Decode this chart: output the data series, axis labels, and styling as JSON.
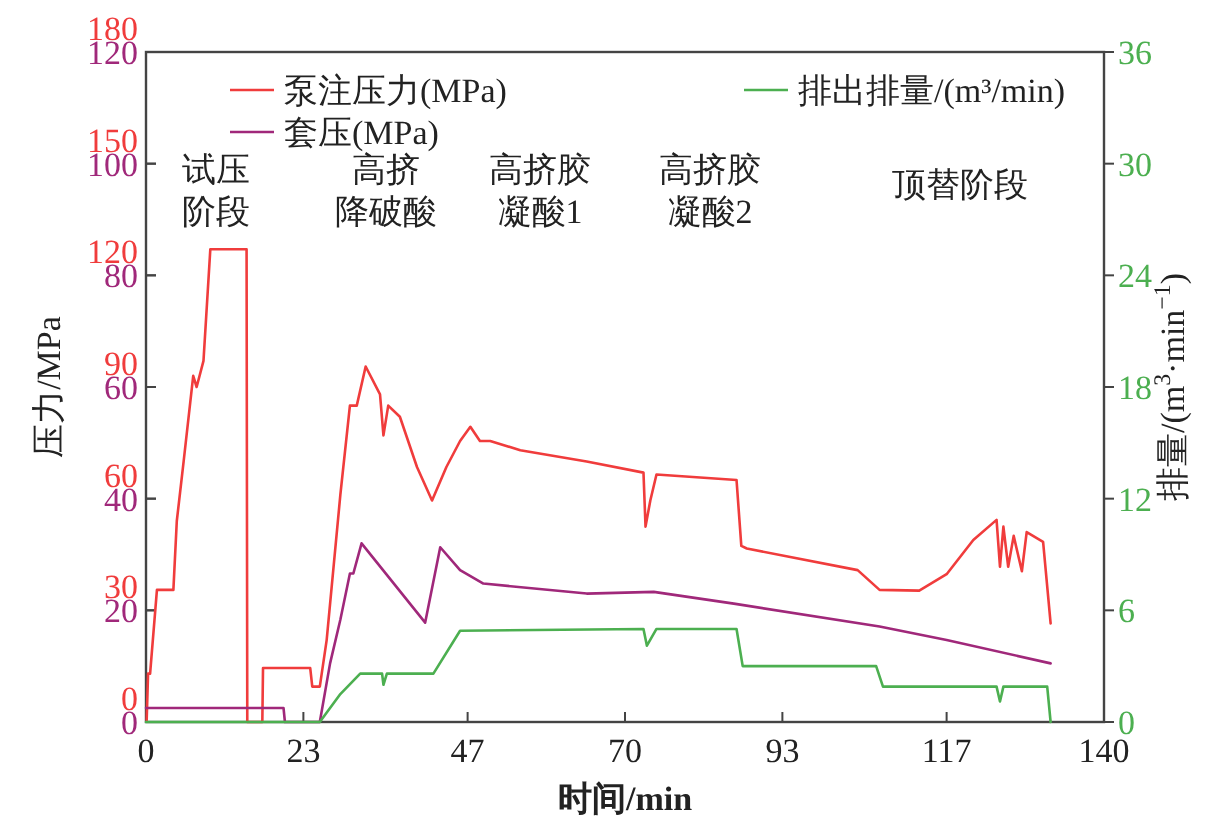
{
  "chart_data": {
    "type": "line",
    "xlabel": "时间/min",
    "ylabel": "压力/MPa",
    "y2label": "排量/(m$^{3}$·min$^{−1}$)",
    "xlim": [
      0,
      140
    ],
    "xticks": [
      0,
      23,
      47,
      70,
      93,
      117,
      140
    ],
    "ylim": [
      0,
      180
    ],
    "yticks": [
      0,
      30,
      60,
      90,
      120,
      150,
      180
    ],
    "y3lim": [
      0,
      120
    ],
    "y3ticks": [
      0,
      20,
      40,
      60,
      80,
      100,
      120
    ],
    "y2lim": [
      0,
      36
    ],
    "y2ticks": [
      0,
      6,
      12,
      18,
      24,
      30,
      36
    ],
    "legend": "top",
    "series": [
      {
        "name": "泵注压力(MPa)",
        "color": "#f03c3c",
        "axis": "y",
        "x": [
          0.1,
          0.3,
          0.6,
          1.6,
          4.0,
          4.5,
          5.5,
          6.9,
          7.4,
          8.4,
          9.4,
          14.7,
          14.8,
          17.0,
          17.1,
          24.0,
          24.3,
          25.4,
          26.4,
          28.4,
          29.8,
          30.8,
          32.1,
          34.2,
          34.7,
          35.4,
          37.1,
          39.6,
          41.8,
          43.9,
          45.9,
          47.4,
          48.8,
          50.3,
          54.7,
          64.4,
          72.7,
          73.0,
          73.7,
          74.6,
          86.3,
          87.0,
          87.8,
          104.0,
          107.2,
          113.0,
          117.0,
          120.9,
          124.3,
          124.8,
          125.3,
          126.0,
          126.8,
          128.0,
          128.7,
          131.1,
          132.2
        ],
        "values": [
          0.5,
          13,
          13,
          35.5,
          35.5,
          54,
          70,
          93,
          90,
          97,
          127,
          127,
          0,
          0,
          14.5,
          14.5,
          9.5,
          9.5,
          22,
          61,
          85,
          85,
          95.5,
          88,
          77,
          85,
          82,
          68.5,
          59.5,
          68.5,
          75.5,
          79.3,
          75.5,
          75.5,
          73,
          70,
          67,
          52.5,
          59.5,
          66.5,
          65,
          47.3,
          46.6,
          40.8,
          35.5,
          35.3,
          39.7,
          48.9,
          54.3,
          41.7,
          52.5,
          41.7,
          50,
          40.5,
          51,
          48.4,
          26.5
        ]
      },
      {
        "name": "套压(MPa)",
        "color": "#a0287a",
        "axis": "y3",
        "x": [
          0,
          20.1,
          20.3,
          25.4,
          26.9,
          28.4,
          29.8,
          30.3,
          31.5,
          40.8,
          43.0,
          45.9,
          49.3,
          64.4,
          74.2,
          85.9,
          107.2,
          117.0,
          132.2
        ],
        "values": [
          2.5,
          2.5,
          0,
          0,
          10.5,
          18.3,
          26.6,
          26.6,
          32,
          17.8,
          31.3,
          27.2,
          24.8,
          23,
          23.3,
          21.2,
          17.1,
          14.7,
          10.5
        ]
      },
      {
        "name": "排出排量/(m³/min)",
        "color": "#4caf50",
        "axis": "y2",
        "x": [
          0,
          25.4,
          28.4,
          31.3,
          34.5,
          34.7,
          35.2,
          42.0,
          45.9,
          72.7,
          73.2,
          74.6,
          86.3,
          87.2,
          106.7,
          107.7,
          124.3,
          124.8,
          125.3,
          131.7,
          132.2
        ],
        "values": [
          0,
          0,
          1.5,
          2.6,
          2.6,
          2.0,
          2.6,
          2.6,
          4.9,
          5.0,
          4.1,
          5.0,
          5.0,
          3.0,
          3.0,
          1.9,
          1.9,
          1.1,
          1.9,
          1.9,
          0
        ]
      }
    ],
    "annotations": [
      "试压阶段",
      "高挤降破酸",
      "高挤胶凝酸1",
      "高挤胶凝酸2",
      "顶替阶段"
    ]
  }
}
